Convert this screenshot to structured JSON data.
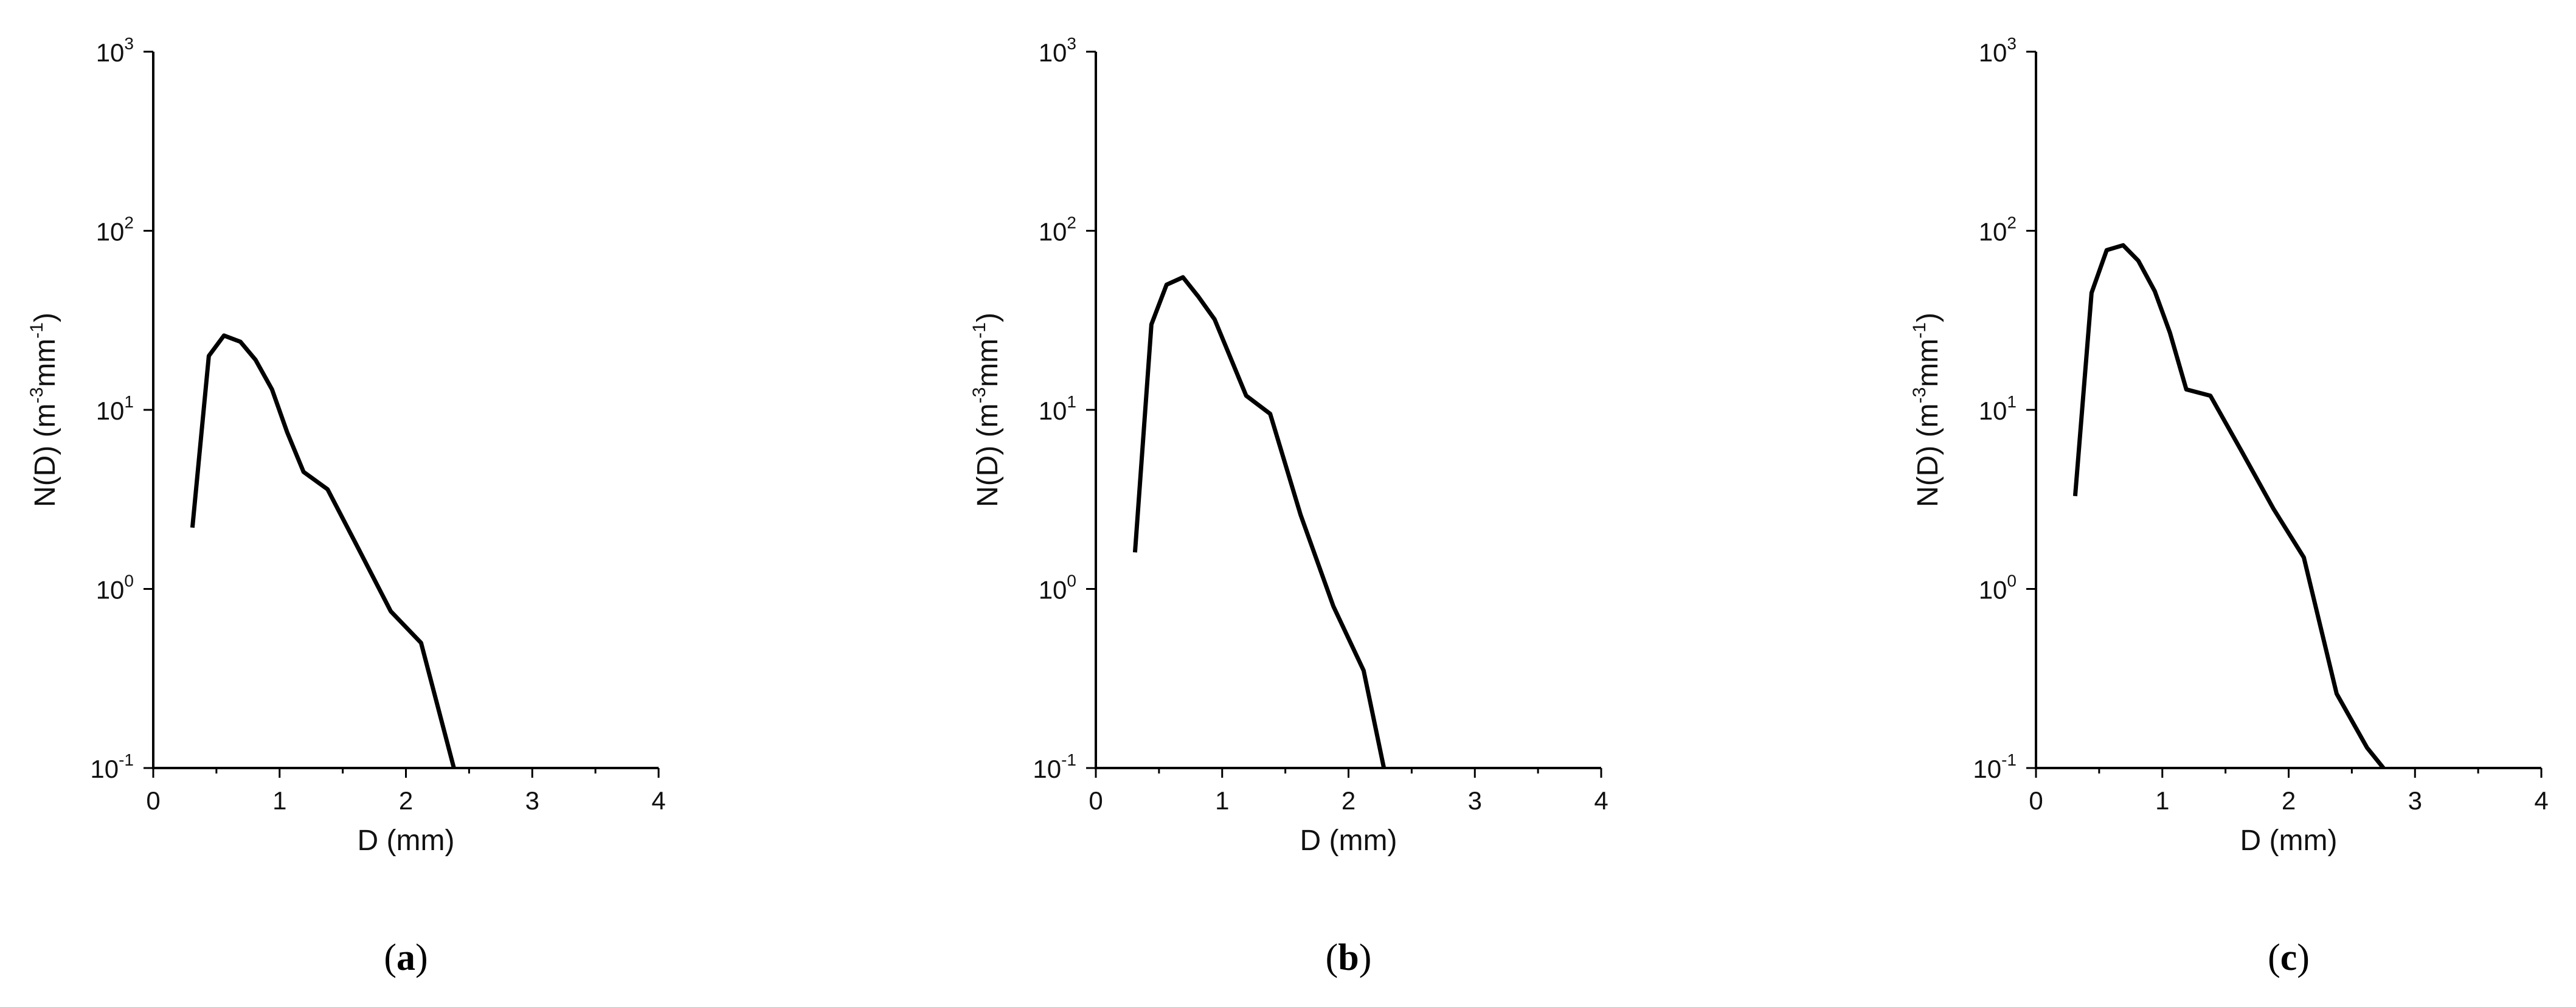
{
  "chart_data": [
    {
      "type": "line",
      "panel_label": "a",
      "xlabel": "D (mm)",
      "ylabel": "N(D) (m-3mm-1)",
      "ylabel_parts": {
        "base": "N(D) (m",
        "sup1": "-3",
        "mid": "mm",
        "sup2": "-1",
        "end": ")"
      },
      "x_scale": "linear",
      "y_scale": "log",
      "xlim": [
        0,
        4
      ],
      "ylim": [
        0.1,
        1000
      ],
      "xticks": [
        0,
        1,
        2,
        3,
        4
      ],
      "yticks": [
        {
          "value": 0.1,
          "base": "10",
          "exp": "-1"
        },
        {
          "value": 1,
          "base": "10",
          "exp": "0"
        },
        {
          "value": 10,
          "base": "10",
          "exp": "1"
        },
        {
          "value": 100,
          "base": "10",
          "exp": "2"
        },
        {
          "value": 1000,
          "base": "10",
          "exp": "3"
        }
      ],
      "grid": false,
      "line_color": "#000000",
      "x": [
        0.31,
        0.44,
        0.56,
        0.69,
        0.81,
        0.94,
        1.06,
        1.19,
        1.38,
        1.62,
        1.88,
        2.12,
        2.38
      ],
      "y": [
        2.2,
        20,
        26,
        24,
        19,
        13,
        7.5,
        4.5,
        3.6,
        1.7,
        0.75,
        0.5,
        0.1
      ]
    },
    {
      "type": "line",
      "panel_label": "b",
      "xlabel": "D (mm)",
      "ylabel": "N(D) (m-3mm-1)",
      "ylabel_parts": {
        "base": "N(D) (m",
        "sup1": "-3",
        "mid": "mm",
        "sup2": "-1",
        "end": ")"
      },
      "x_scale": "linear",
      "y_scale": "log",
      "xlim": [
        0,
        4
      ],
      "ylim": [
        0.1,
        1000
      ],
      "xticks": [
        0,
        1,
        2,
        3,
        4
      ],
      "yticks": [
        {
          "value": 0.1,
          "base": "10",
          "exp": "-1"
        },
        {
          "value": 1,
          "base": "10",
          "exp": "0"
        },
        {
          "value": 10,
          "base": "10",
          "exp": "1"
        },
        {
          "value": 100,
          "base": "10",
          "exp": "2"
        },
        {
          "value": 1000,
          "base": "10",
          "exp": "3"
        }
      ],
      "grid": false,
      "line_color": "#000000",
      "x": [
        0.31,
        0.44,
        0.56,
        0.69,
        0.81,
        0.94,
        1.06,
        1.19,
        1.38,
        1.62,
        1.88,
        2.12,
        2.28
      ],
      "y": [
        1.6,
        30,
        50,
        55,
        43,
        32,
        20,
        12,
        9.5,
        2.6,
        0.8,
        0.35,
        0.1
      ]
    },
    {
      "type": "line",
      "panel_label": "c",
      "xlabel": "D (mm)",
      "ylabel": "N(D) (m-3mm-1)",
      "ylabel_parts": {
        "base": "N(D) (m",
        "sup1": "-3",
        "mid": "mm",
        "sup2": "-1",
        "end": ")"
      },
      "x_scale": "linear",
      "y_scale": "log",
      "xlim": [
        0,
        4
      ],
      "ylim": [
        0.1,
        1000
      ],
      "xticks": [
        0,
        1,
        2,
        3,
        4
      ],
      "yticks": [
        {
          "value": 0.1,
          "base": "10",
          "exp": "-1"
        },
        {
          "value": 1,
          "base": "10",
          "exp": "0"
        },
        {
          "value": 10,
          "base": "10",
          "exp": "1"
        },
        {
          "value": 100,
          "base": "10",
          "exp": "2"
        },
        {
          "value": 1000,
          "base": "10",
          "exp": "3"
        }
      ],
      "grid": false,
      "line_color": "#000000",
      "x": [
        0.31,
        0.44,
        0.56,
        0.69,
        0.81,
        0.94,
        1.06,
        1.19,
        1.38,
        1.62,
        1.88,
        2.12,
        2.38,
        2.62,
        2.75
      ],
      "y": [
        3.3,
        45,
        78,
        83,
        68,
        46,
        27,
        13,
        12,
        6,
        2.8,
        1.5,
        0.26,
        0.13,
        0.1
      ]
    }
  ]
}
